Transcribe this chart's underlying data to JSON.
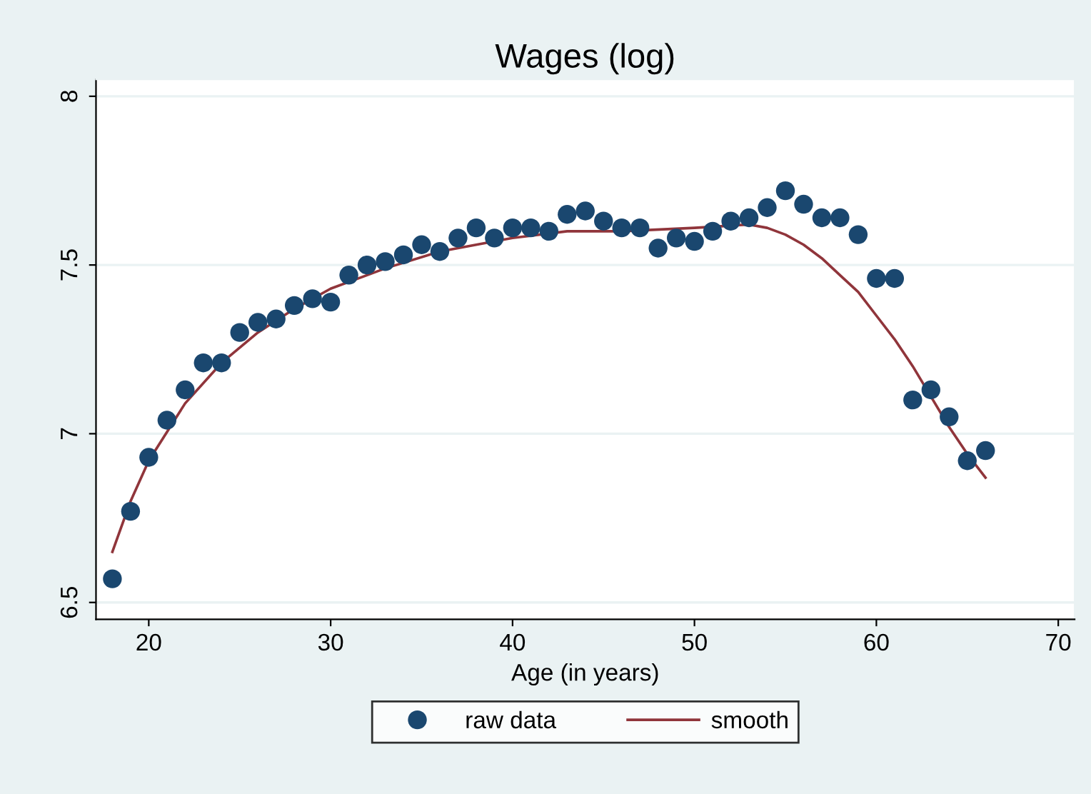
{
  "chart_data": {
    "type": "scatter",
    "title": "Wages (log)",
    "xlabel": "Age (in years)",
    "xlim": [
      17.1,
      70.9
    ],
    "xticks": [
      20,
      30,
      40,
      50,
      60,
      70
    ],
    "ylim": [
      6.45,
      8.05
    ],
    "yticks": [
      6.5,
      7,
      7.5,
      8
    ],
    "grid": "y",
    "legend": "bottom",
    "marker": "circle",
    "series": [
      {
        "name": "raw data",
        "color": "#1a476f",
        "x": [
          18,
          19,
          20,
          21,
          22,
          23,
          24,
          25,
          26,
          27,
          28,
          29,
          30,
          31,
          32,
          33,
          34,
          35,
          36,
          37,
          38,
          39,
          40,
          41,
          42,
          43,
          44,
          45,
          46,
          47,
          48,
          49,
          50,
          51,
          52,
          53,
          54,
          55,
          56,
          57,
          58,
          59,
          60,
          61,
          62,
          63,
          64,
          65,
          66
        ],
        "values": [
          6.57,
          6.77,
          6.93,
          7.04,
          7.13,
          7.21,
          7.21,
          7.3,
          7.33,
          7.34,
          7.38,
          7.4,
          7.39,
          7.47,
          7.5,
          7.51,
          7.53,
          7.56,
          7.54,
          7.58,
          7.61,
          7.58,
          7.61,
          7.61,
          7.6,
          7.65,
          7.66,
          7.63,
          7.61,
          7.61,
          7.55,
          7.58,
          7.57,
          7.6,
          7.63,
          7.64,
          7.67,
          7.72,
          7.68,
          7.64,
          7.64,
          7.59,
          7.46,
          7.46,
          7.1,
          7.13,
          7.05,
          6.92,
          6.95
        ]
      },
      {
        "name": "smooth",
        "type": "line",
        "color": "#90353b",
        "line_style": "solid",
        "marker": "none",
        "x": [
          18,
          19,
          20,
          22,
          24,
          26,
          28,
          30,
          33,
          36,
          40,
          43,
          46,
          50,
          53,
          54,
          55,
          56,
          57,
          58,
          59,
          60,
          61,
          62,
          63,
          64,
          65,
          66
        ],
        "values": [
          6.65,
          6.8,
          6.92,
          7.09,
          7.21,
          7.3,
          7.37,
          7.43,
          7.49,
          7.54,
          7.58,
          7.6,
          7.6,
          7.61,
          7.62,
          7.61,
          7.59,
          7.56,
          7.52,
          7.47,
          7.42,
          7.35,
          7.28,
          7.2,
          7.11,
          7.02,
          6.94,
          6.87
        ]
      }
    ]
  }
}
